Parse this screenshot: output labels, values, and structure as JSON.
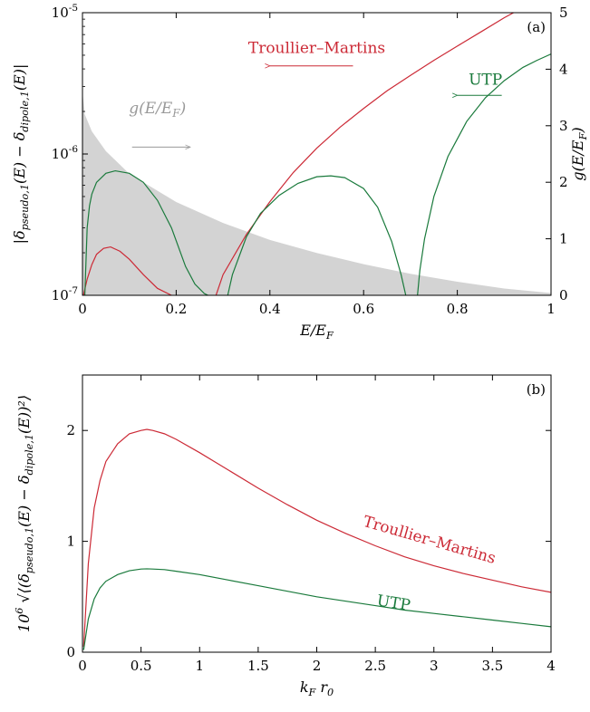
{
  "chart_data": [
    {
      "type": "line",
      "panel_label": "(a)",
      "xlabel": "E/E_F",
      "ylabel_left": "|δ_pseudo,1(E) − δ_dipole,1(E)|",
      "ylabel_right": "g(E/E_F)",
      "xlim": [
        0,
        1
      ],
      "ylim_left": [
        1e-07,
        1e-05
      ],
      "yscale_left": "log",
      "ylim_right": [
        0,
        5
      ],
      "x_ticks": [
        0,
        0.2,
        0.4,
        0.6,
        0.8,
        1
      ],
      "x_tick_labels": [
        "0",
        "0.2",
        "0.4",
        "0.6",
        "0.8",
        "1"
      ],
      "y_left_ticks": [
        1e-07,
        1e-06,
        1e-05
      ],
      "y_left_tick_labels": [
        "10^-7",
        "10^-6",
        "10^-5"
      ],
      "y_right_ticks": [
        0,
        1,
        2,
        3,
        4,
        5
      ],
      "y_right_tick_labels": [
        "0",
        "1",
        "2",
        "3",
        "4",
        "5"
      ],
      "grid": false,
      "density": {
        "name": "g(E/E_F)",
        "axis": "right",
        "color": "#d3d3d3",
        "x": [
          0,
          0.005,
          0.02,
          0.05,
          0.1,
          0.2,
          0.3,
          0.4,
          0.5,
          0.6,
          0.7,
          0.8,
          0.9,
          1.0
        ],
        "y": [
          3.6,
          3.2,
          2.9,
          2.55,
          2.15,
          1.65,
          1.28,
          0.98,
          0.75,
          0.55,
          0.38,
          0.24,
          0.12,
          0.04
        ]
      },
      "series": [
        {
          "name": "Troullier–Martins",
          "color": "#cc2a36",
          "segments": [
            {
              "x": [
                0.002,
                0.01,
                0.02,
                0.03,
                0.045,
                0.06,
                0.08,
                0.1,
                0.13,
                0.16,
                0.19
              ],
              "y": [
                1e-07,
                1.3e-07,
                1.65e-07,
                1.95e-07,
                2.15e-07,
                2.2e-07,
                2.05e-07,
                1.8e-07,
                1.4e-07,
                1.12e-07,
                1e-07
              ]
            },
            {
              "x": [
                0.285,
                0.3,
                0.35,
                0.4,
                0.45,
                0.5,
                0.55,
                0.6,
                0.65,
                0.7,
                0.75,
                0.8,
                0.85,
                0.9,
                0.92
              ],
              "y": [
                1e-07,
                1.4e-07,
                2.7e-07,
                4.6e-07,
                7.4e-07,
                1.1e-06,
                1.55e-06,
                2.1e-06,
                2.8e-06,
                3.6e-06,
                4.6e-06,
                5.8e-06,
                7.3e-06,
                9.2e-06,
                1e-05
              ]
            }
          ]
        },
        {
          "name": "UTP",
          "color": "#1a7a3c",
          "segments": [
            {
              "x": [
                0.005,
                0.01,
                0.015,
                0.02,
                0.03,
                0.05,
                0.07,
                0.1,
                0.13,
                0.16,
                0.19,
                0.22,
                0.24,
                0.26,
                0.268
              ],
              "y": [
                1e-07,
                3e-07,
                4.3e-07,
                5.2e-07,
                6.3e-07,
                7.3e-07,
                7.6e-07,
                7.3e-07,
                6.3e-07,
                4.7e-07,
                3e-07,
                1.6e-07,
                1.2e-07,
                1.03e-07,
                1e-07
              ]
            },
            {
              "x": [
                0.31,
                0.32,
                0.35,
                0.38,
                0.42,
                0.46,
                0.5,
                0.53,
                0.56,
                0.6,
                0.63,
                0.66,
                0.68,
                0.69
              ],
              "y": [
                1e-07,
                1.4e-07,
                2.6e-07,
                3.8e-07,
                5.1e-07,
                6.2e-07,
                6.9e-07,
                7e-07,
                6.8e-07,
                5.7e-07,
                4.2e-07,
                2.4e-07,
                1.4e-07,
                1e-07
              ]
            },
            {
              "x": [
                0.715,
                0.72,
                0.73,
                0.75,
                0.78,
                0.82,
                0.86,
                0.9,
                0.94,
                0.97,
                1.0
              ],
              "y": [
                1e-07,
                1.5e-07,
                2.5e-07,
                5e-07,
                9.6e-07,
                1.7e-06,
                2.5e-06,
                3.3e-06,
                4.1e-06,
                4.6e-06,
                5.1e-06
              ]
            }
          ]
        }
      ],
      "annotations": [
        {
          "text": "Troullier–Martins",
          "color": "#cc2a36",
          "x": 0.5,
          "y": 5.2e-06,
          "arrow_to": [
            0.4,
            4.2e-06
          ]
        },
        {
          "text": "UTP",
          "color": "#1a7a3c",
          "x": 0.86,
          "y": 3.1e-06,
          "arrow_to": [
            0.8,
            2.6e-06
          ]
        },
        {
          "text": "g(E/E_F)",
          "color": "#999999",
          "x": 0.16,
          "y": 1.95e-06,
          "arrow_to": [
            0.23,
            1.12e-06
          ]
        }
      ]
    },
    {
      "type": "line",
      "panel_label": "(b)",
      "xlabel": "k_F r_0",
      "ylabel": "10^6 √⟨(δ_pseudo,1(E) − δ_dipole,1(E))²⟩",
      "xlim": [
        0,
        4
      ],
      "ylim": [
        0,
        2.5
      ],
      "x_ticks": [
        0,
        0.5,
        1,
        1.5,
        2,
        2.5,
        3,
        3.5,
        4
      ],
      "x_tick_labels": [
        "0",
        "0.5",
        "1",
        "1.5",
        "2",
        "2.5",
        "3",
        "3.5",
        "4"
      ],
      "y_ticks": [
        0,
        1,
        2
      ],
      "y_tick_labels": [
        "0",
        "1",
        "2"
      ],
      "grid": false,
      "series": [
        {
          "name": "Troullier–Martins",
          "color": "#cc2a36",
          "x": [
            0.01,
            0.05,
            0.1,
            0.15,
            0.2,
            0.3,
            0.4,
            0.5,
            0.55,
            0.6,
            0.7,
            0.8,
            1.0,
            1.25,
            1.5,
            1.75,
            2.0,
            2.25,
            2.5,
            2.75,
            3.0,
            3.25,
            3.5,
            3.75,
            4.0
          ],
          "y": [
            0.05,
            0.8,
            1.3,
            1.55,
            1.72,
            1.88,
            1.97,
            2.0,
            2.01,
            2.0,
            1.97,
            1.92,
            1.8,
            1.64,
            1.48,
            1.33,
            1.19,
            1.07,
            0.96,
            0.86,
            0.78,
            0.71,
            0.65,
            0.59,
            0.54
          ]
        },
        {
          "name": "UTP",
          "color": "#1a7a3c",
          "x": [
            0.01,
            0.05,
            0.1,
            0.15,
            0.2,
            0.3,
            0.4,
            0.5,
            0.55,
            0.6,
            0.7,
            0.8,
            1.0,
            1.25,
            1.5,
            1.75,
            2.0,
            2.25,
            2.5,
            2.75,
            3.0,
            3.25,
            3.5,
            3.75,
            4.0
          ],
          "y": [
            0.02,
            0.3,
            0.48,
            0.58,
            0.64,
            0.7,
            0.735,
            0.75,
            0.752,
            0.75,
            0.745,
            0.73,
            0.7,
            0.65,
            0.6,
            0.55,
            0.5,
            0.46,
            0.42,
            0.38,
            0.35,
            0.32,
            0.29,
            0.26,
            0.23
          ]
        }
      ],
      "annotations": [
        {
          "text": "Troullier–Martins",
          "color": "#cc2a36",
          "x": 2.95,
          "y": 0.97,
          "rotate": 16
        },
        {
          "text": "UTP",
          "color": "#1a7a3c",
          "x": 2.65,
          "y": 0.4,
          "rotate": 9
        }
      ]
    }
  ]
}
